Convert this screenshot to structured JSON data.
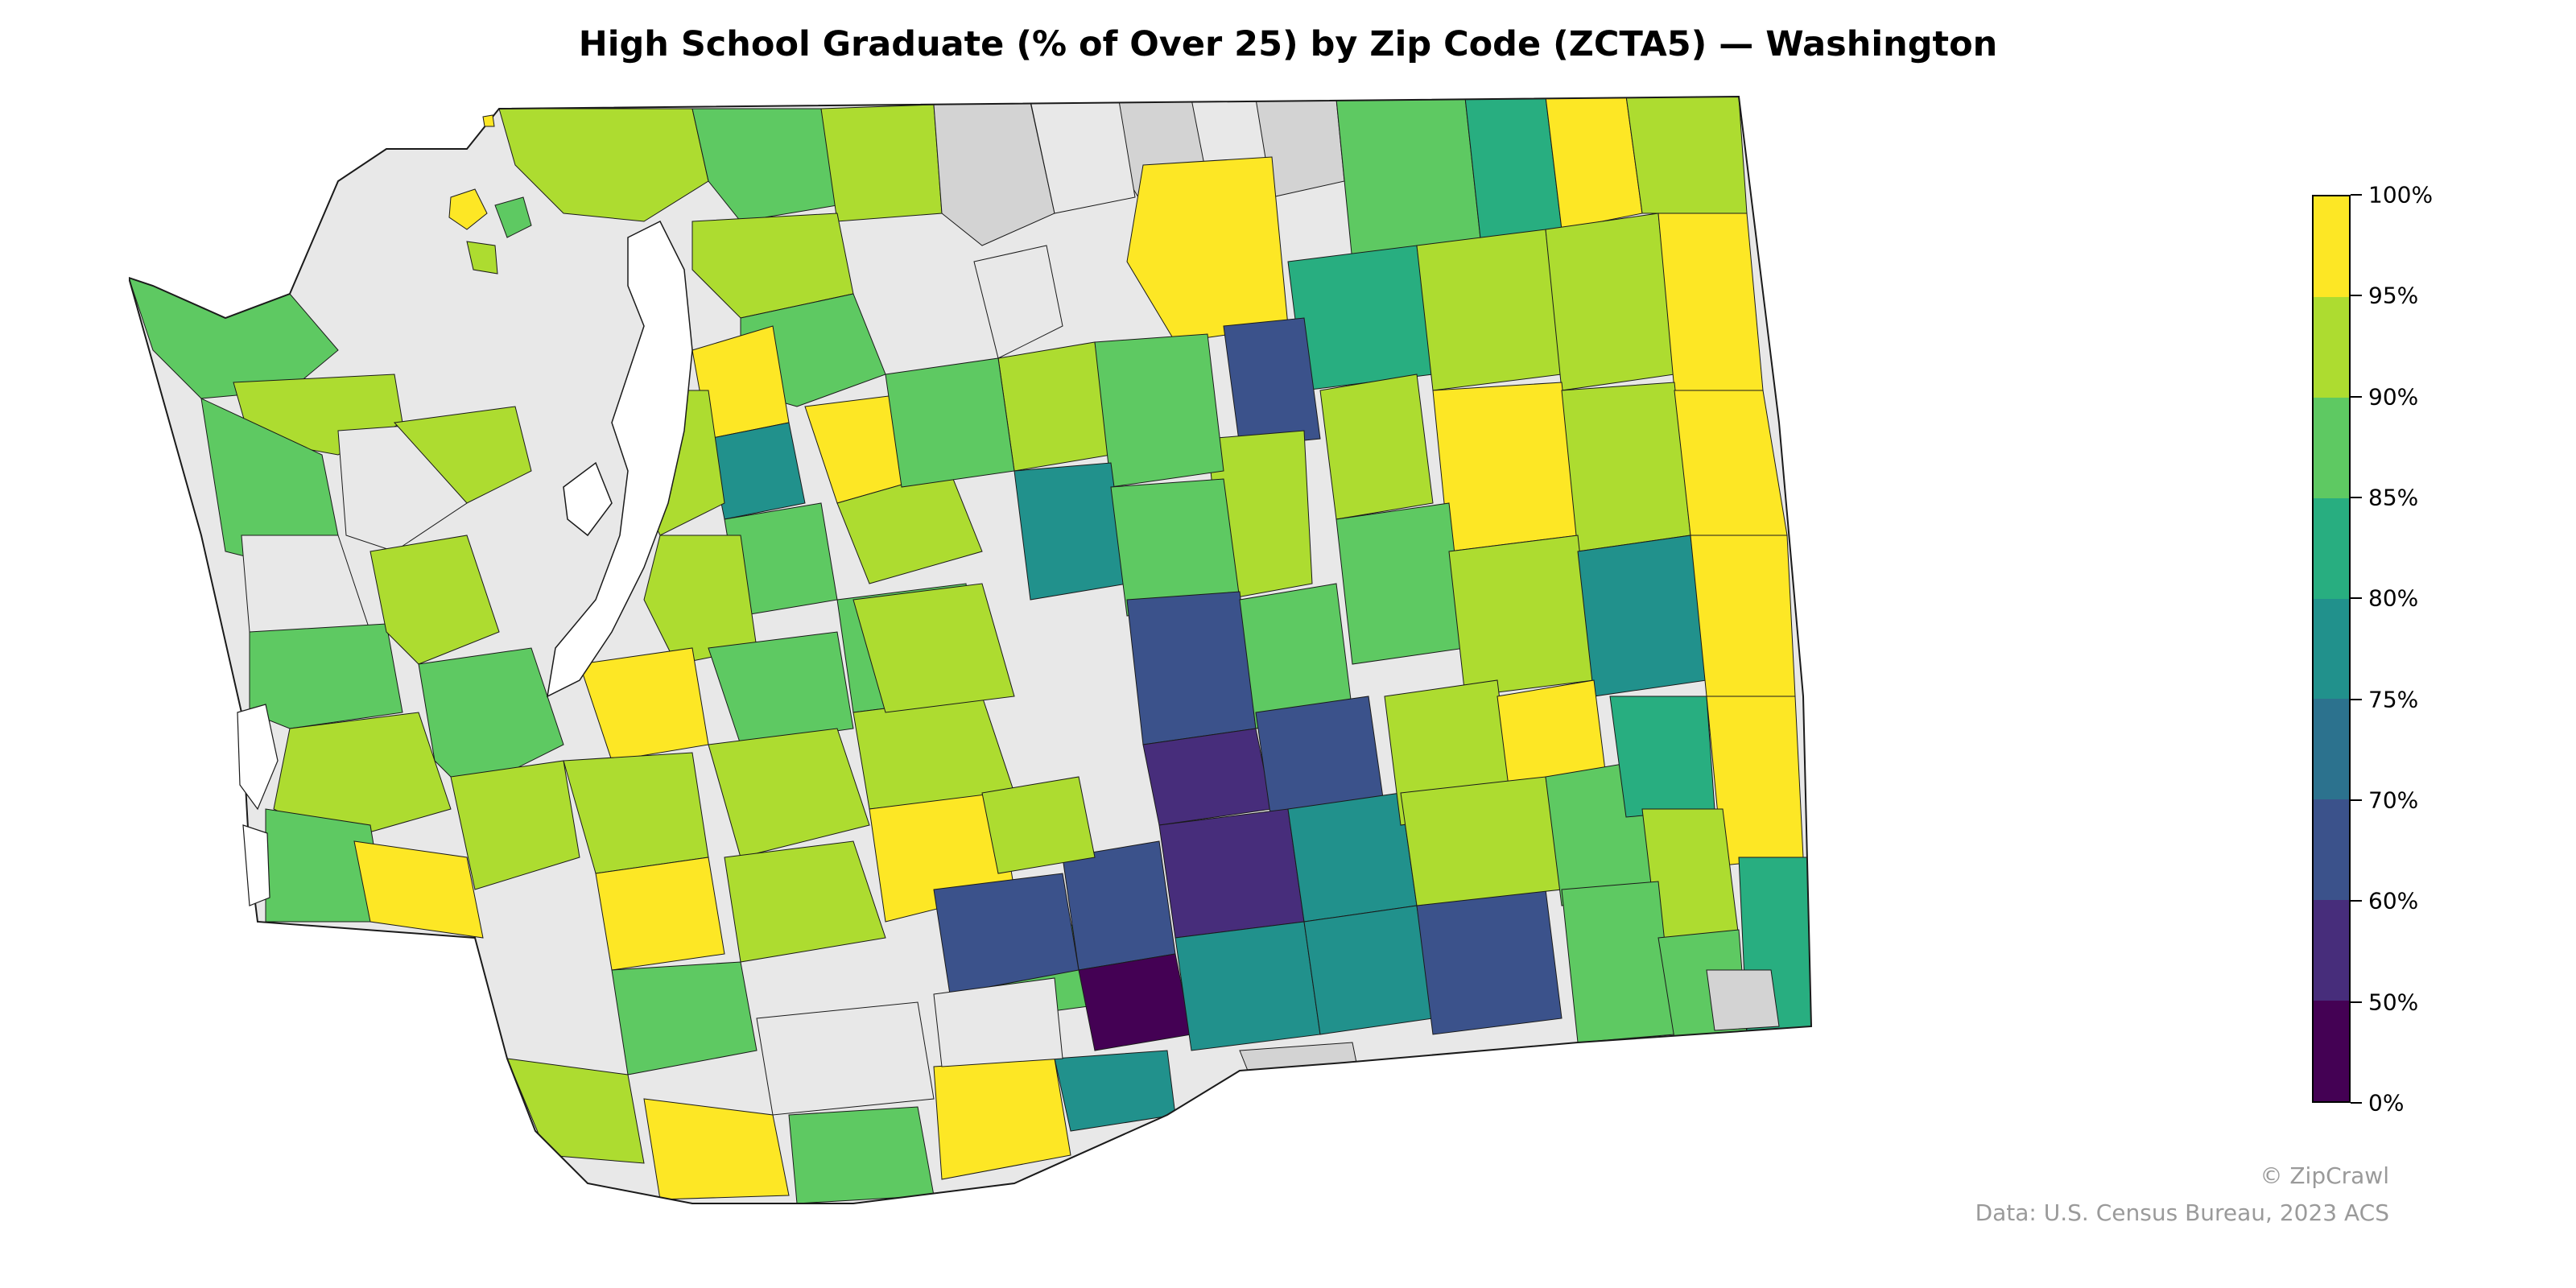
{
  "title": "High School Graduate (% of Over 25) by Zip Code (ZCTA5) — Washington",
  "legend": {
    "ticks": [
      "100%",
      "95%",
      "90%",
      "85%",
      "80%",
      "75%",
      "70%",
      "60%",
      "50%",
      "0%"
    ],
    "colors": [
      "#fde725",
      "#addc30",
      "#5ec962",
      "#28ae80",
      "#21918c",
      "#2c728e",
      "#3b528b",
      "#472d7b",
      "#440154"
    ]
  },
  "colors": {
    "no_data": "#d3d3d3",
    "background_land": "#e8e8e8",
    "border": "#1a1a1a"
  },
  "credits": {
    "brand": "© ZipCrawl",
    "source": "Data: U.S. Census Bureau, 2023 ACS"
  }
}
